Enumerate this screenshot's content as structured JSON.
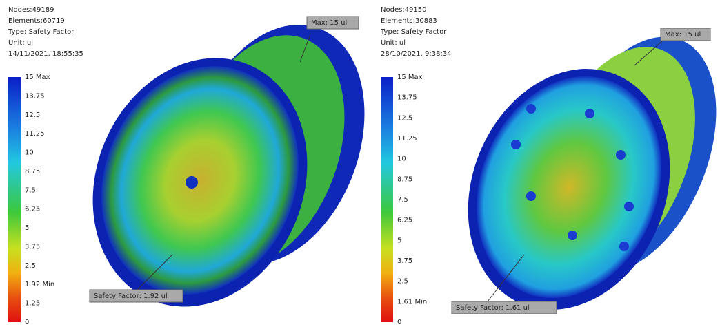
{
  "panels": [
    {
      "info": [
        "Nodes:49189",
        "Elements:60719",
        "Type: Safety Factor",
        "Unit: ul",
        "14/11/2021, 18:55:35"
      ],
      "legend": [
        "15 Max",
        "13.75",
        "12.5",
        "11.25",
        "10",
        "8.75",
        "7.5",
        "6.25",
        "5",
        "3.75",
        "2.5",
        "1.92 Min",
        "1.25",
        "0"
      ],
      "callouts": {
        "max": "Max: 15 ul",
        "min": "Safety Factor: 1.92 ul"
      }
    },
    {
      "info": [
        "Nodes:49150",
        "Elements:30883",
        "Type: Safety Factor",
        "Unit: ul",
        "28/10/2021, 9:38:34"
      ],
      "legend": [
        "15 Max",
        "13.75",
        "12.5",
        "11.25",
        "10",
        "8.75",
        "7.5",
        "6.25",
        "5",
        "3.75",
        "2.5",
        "1.61 Min",
        "0"
      ],
      "callouts": {
        "max": "Max: 15 ul",
        "min": "Safety Factor: 1.61 ul"
      }
    }
  ]
}
